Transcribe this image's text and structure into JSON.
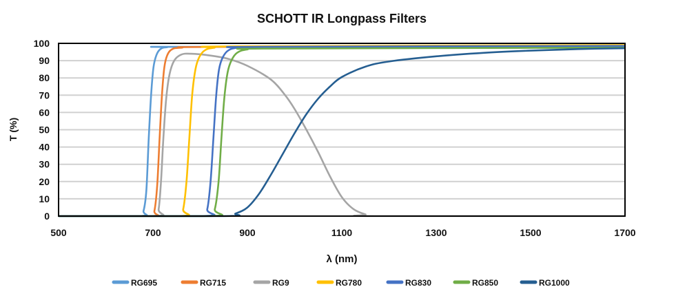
{
  "chart_data": {
    "type": "line",
    "title": "SCHOTT IR Longpass Filters",
    "xlabel": "λ (nm)",
    "ylabel": "T (%)",
    "xlim": [
      500,
      1700
    ],
    "ylim": [
      0,
      100
    ],
    "xticks": [
      500,
      700,
      900,
      1100,
      1300,
      1500,
      1700
    ],
    "yticks": [
      0,
      10,
      20,
      30,
      40,
      50,
      60,
      70,
      80,
      90,
      100
    ],
    "grid": "horizontal",
    "legend": "bottom",
    "series": [
      {
        "name": "RG695",
        "color": "#5B9BD5",
        "points": [
          [
            500,
            0
          ],
          [
            672,
            0
          ],
          [
            680,
            3
          ],
          [
            686,
            15
          ],
          [
            691,
            45
          ],
          [
            696,
            70
          ],
          [
            701,
            86
          ],
          [
            707,
            93
          ],
          [
            715,
            96.5
          ],
          [
            730,
            97.8
          ],
          [
            780,
            98
          ],
          [
            1700,
            98
          ]
        ]
      },
      {
        "name": "RG715",
        "color": "#ED7D31",
        "points": [
          [
            500,
            0
          ],
          [
            695,
            0
          ],
          [
            703,
            3
          ],
          [
            709,
            18
          ],
          [
            714,
            45
          ],
          [
            719,
            70
          ],
          [
            724,
            86
          ],
          [
            730,
            93
          ],
          [
            740,
            96.5
          ],
          [
            760,
            97.5
          ],
          [
            850,
            98
          ],
          [
            1700,
            98.5
          ]
        ]
      },
      {
        "name": "RG9",
        "color": "#A5A5A5",
        "points": [
          [
            500,
            0
          ],
          [
            705,
            0
          ],
          [
            712,
            4
          ],
          [
            717,
            20
          ],
          [
            722,
            45
          ],
          [
            728,
            68
          ],
          [
            735,
            82
          ],
          [
            745,
            90
          ],
          [
            760,
            93.5
          ],
          [
            780,
            94
          ],
          [
            820,
            93
          ],
          [
            860,
            91
          ],
          [
            900,
            87
          ],
          [
            950,
            79
          ],
          [
            980,
            70
          ],
          [
            1000,
            62
          ],
          [
            1025,
            50
          ],
          [
            1050,
            37
          ],
          [
            1075,
            23
          ],
          [
            1100,
            11
          ],
          [
            1125,
            4
          ],
          [
            1150,
            1
          ],
          [
            1170,
            0
          ],
          [
            1700,
            0
          ]
        ]
      },
      {
        "name": "RG780",
        "color": "#FFC000",
        "points": [
          [
            500,
            0
          ],
          [
            755,
            0
          ],
          [
            764,
            4
          ],
          [
            771,
            20
          ],
          [
            777,
            45
          ],
          [
            783,
            70
          ],
          [
            790,
            85
          ],
          [
            798,
            92
          ],
          [
            810,
            96
          ],
          [
            830,
            97.5
          ],
          [
            880,
            98.3
          ],
          [
            1700,
            99
          ]
        ]
      },
      {
        "name": "RG830",
        "color": "#4472C4",
        "points": [
          [
            500,
            0
          ],
          [
            805,
            0
          ],
          [
            815,
            4
          ],
          [
            822,
            20
          ],
          [
            828,
            45
          ],
          [
            834,
            70
          ],
          [
            840,
            85
          ],
          [
            848,
            92
          ],
          [
            860,
            96
          ],
          [
            880,
            97.5
          ],
          [
            930,
            98
          ],
          [
            1700,
            98.5
          ]
        ]
      },
      {
        "name": "RG850",
        "color": "#70AD47",
        "points": [
          [
            500,
            0
          ],
          [
            820,
            0
          ],
          [
            831,
            4
          ],
          [
            839,
            20
          ],
          [
            845,
            45
          ],
          [
            851,
            68
          ],
          [
            858,
            83
          ],
          [
            866,
            90
          ],
          [
            878,
            94.5
          ],
          [
            900,
            96.5
          ],
          [
            950,
            97
          ],
          [
            1700,
            97.5
          ]
        ]
      },
      {
        "name": "RG1000",
        "color": "#255E91",
        "points": [
          [
            500,
            0
          ],
          [
            850,
            0
          ],
          [
            875,
            1.5
          ],
          [
            900,
            5
          ],
          [
            925,
            13
          ],
          [
            950,
            24
          ],
          [
            975,
            36
          ],
          [
            1000,
            48
          ],
          [
            1025,
            59
          ],
          [
            1050,
            68
          ],
          [
            1075,
            75
          ],
          [
            1100,
            80.5
          ],
          [
            1150,
            86.5
          ],
          [
            1200,
            89.5
          ],
          [
            1300,
            92.5
          ],
          [
            1400,
            94.5
          ],
          [
            1500,
            95.8
          ],
          [
            1600,
            96.7
          ],
          [
            1700,
            97.2
          ]
        ]
      }
    ]
  }
}
